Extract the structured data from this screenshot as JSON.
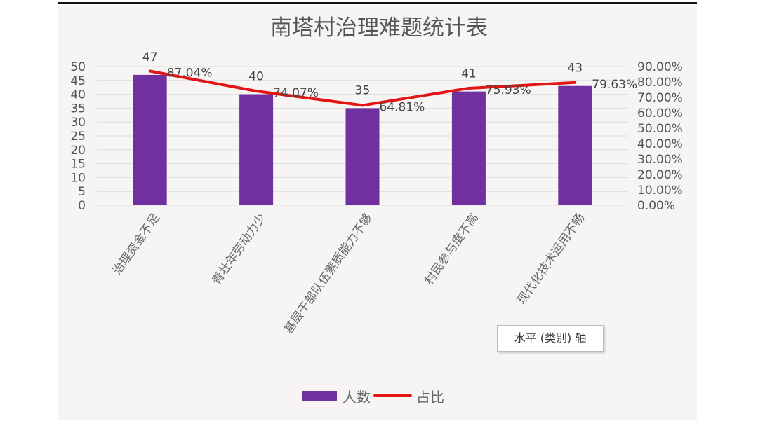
{
  "chart_data": {
    "type": "bar",
    "title": "南塔村治理难题统计表",
    "categories": [
      "治理资金不足",
      "青壮年劳动力少",
      "基层干部队伍素质能力不够",
      "村民参与度不高",
      "现代化技术运用不畅"
    ],
    "series": [
      {
        "name": "人数",
        "type": "bar",
        "axis": "left",
        "values": [
          47,
          40,
          35,
          41,
          43
        ],
        "labels": [
          "47",
          "40",
          "35",
          "41",
          "43"
        ],
        "color": "#7030a0"
      },
      {
        "name": "占比",
        "type": "line",
        "axis": "right",
        "values": [
          87.04,
          74.07,
          64.81,
          75.93,
          79.63
        ],
        "labels": [
          "87.04%",
          "74.07%",
          "64.81%",
          "75.93%",
          "79.63%"
        ],
        "color": "#e31414"
      }
    ],
    "left_axis": {
      "range": [
        0,
        50
      ],
      "ticks": [
        "0",
        "5",
        "10",
        "15",
        "20",
        "25",
        "30",
        "35",
        "40",
        "45",
        "50"
      ]
    },
    "right_axis": {
      "range": [
        0,
        90
      ],
      "ticks": [
        "0.00%",
        "10.00%",
        "20.00%",
        "30.00%",
        "40.00%",
        "50.00%",
        "60.00%",
        "70.00%",
        "80.00%",
        "90.00%"
      ]
    },
    "grid": true,
    "legend": "bottom"
  },
  "tooltip": "水平 (类别) 轴"
}
